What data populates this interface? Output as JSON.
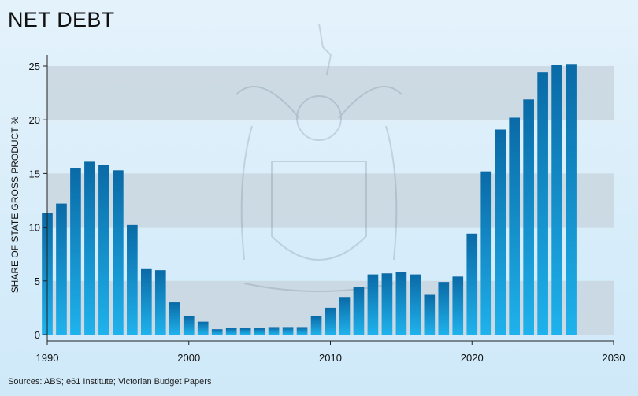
{
  "title": "NET DEBT",
  "source": "Sources: ABS; e61 Institute; Victorian Budget Papers",
  "chart_data": {
    "type": "bar",
    "ylabel": "SHARE OF STATE GROSS PRODUCT %",
    "xlabel": "",
    "xlim": [
      1990,
      2030
    ],
    "ylim": [
      0,
      25
    ],
    "x_ticks": [
      1990,
      2000,
      2010,
      2020,
      2030
    ],
    "y_ticks": [
      0,
      5,
      10,
      15,
      20,
      25
    ],
    "grid": "alternating horizontal bands",
    "colors": {
      "bar_top": "#0a6aa6",
      "bar_bottom": "#1fb2ec",
      "band": "#c9d6df",
      "axis": "#222222"
    },
    "x": [
      1990,
      1991,
      1992,
      1993,
      1994,
      1995,
      1996,
      1997,
      1998,
      1999,
      2000,
      2001,
      2002,
      2003,
      2004,
      2005,
      2006,
      2007,
      2008,
      2009,
      2010,
      2011,
      2012,
      2013,
      2014,
      2015,
      2016,
      2017,
      2018,
      2019,
      2020,
      2021,
      2022,
      2023,
      2024,
      2025,
      2026,
      2027
    ],
    "values": [
      11.3,
      12.2,
      15.5,
      16.1,
      15.8,
      15.3,
      10.2,
      6.1,
      6.0,
      3.0,
      1.7,
      1.2,
      0.5,
      0.6,
      0.6,
      0.6,
      0.7,
      0.7,
      0.7,
      1.7,
      2.5,
      3.5,
      4.4,
      5.6,
      5.7,
      5.8,
      5.6,
      3.7,
      4.9,
      5.4,
      9.4,
      15.2,
      19.1,
      20.2,
      21.9,
      24.4,
      25.1,
      25.2
    ]
  }
}
